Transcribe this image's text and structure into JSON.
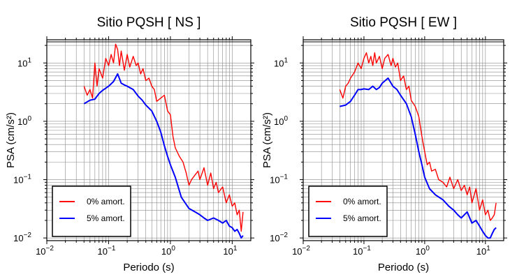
{
  "chart_data": [
    {
      "type": "line",
      "title": "Sitio PQSH [ NS ]",
      "xlabel": "Periodo (s)",
      "ylabel": "PSA (cm/s²)",
      "xscale": "log",
      "yscale": "log",
      "xlim": [
        0.01,
        20
      ],
      "ylim": [
        0.009,
        25
      ],
      "grid": true,
      "legend_position": "bottom-left",
      "xticks": [
        {
          "base": "10",
          "exp": "−2"
        },
        {
          "base": "10",
          "exp": "−1"
        },
        {
          "base": "10",
          "exp": "0"
        },
        {
          "base": "10",
          "exp": "1"
        }
      ],
      "yticks": [
        {
          "base": "10",
          "exp": "−2"
        },
        {
          "base": "10",
          "exp": "−1"
        },
        {
          "base": "10",
          "exp": "0"
        },
        {
          "base": "10",
          "exp": "1"
        }
      ],
      "series": [
        {
          "name": "0% amort.",
          "color": "#ff0000",
          "x": [
            0.04,
            0.045,
            0.05,
            0.055,
            0.06,
            0.065,
            0.07,
            0.08,
            0.09,
            0.1,
            0.11,
            0.12,
            0.13,
            0.14,
            0.15,
            0.16,
            0.18,
            0.2,
            0.22,
            0.25,
            0.28,
            0.3,
            0.33,
            0.36,
            0.4,
            0.45,
            0.5,
            0.55,
            0.6,
            0.7,
            0.8,
            0.9,
            1.0,
            1.1,
            1.2,
            1.4,
            1.6,
            1.8,
            2.0,
            2.2,
            2.5,
            2.8,
            3.0,
            3.5,
            4.0,
            4.5,
            5.0,
            5.5,
            6.0,
            7.0,
            8.0,
            9.0,
            10.0,
            11.0,
            12.0,
            13.0,
            14.0,
            15.0
          ],
          "y": [
            4.0,
            2.8,
            3.5,
            2.5,
            10.0,
            4.0,
            8.0,
            5.5,
            12.0,
            9.0,
            14.0,
            10.0,
            21.0,
            17.0,
            9.0,
            16.0,
            7.5,
            14.0,
            8.5,
            13.0,
            9.0,
            10.0,
            6.5,
            8.0,
            5.0,
            5.5,
            4.0,
            3.5,
            2.2,
            2.5,
            2.8,
            1.5,
            1.3,
            0.55,
            0.35,
            0.25,
            0.2,
            0.13,
            0.08,
            0.1,
            0.12,
            0.14,
            0.1,
            0.16,
            0.08,
            0.13,
            0.07,
            0.09,
            0.06,
            0.075,
            0.04,
            0.055,
            0.035,
            0.04,
            0.025,
            0.03,
            0.013,
            0.028
          ]
        },
        {
          "name": "5% amort.",
          "color": "#0000ff",
          "x": [
            0.04,
            0.05,
            0.06,
            0.07,
            0.08,
            0.09,
            0.1,
            0.12,
            0.14,
            0.16,
            0.18,
            0.2,
            0.25,
            0.3,
            0.35,
            0.4,
            0.5,
            0.6,
            0.7,
            0.8,
            0.9,
            1.0,
            1.2,
            1.5,
            2.0,
            2.5,
            3.0,
            3.5,
            4.0,
            5.0,
            6.0,
            7.0,
            8.0,
            9.0,
            10.0,
            11.0,
            12.0,
            13.0,
            14.0,
            15.0
          ],
          "y": [
            2.0,
            2.3,
            2.4,
            3.0,
            3.4,
            3.7,
            4.0,
            4.8,
            6.5,
            4.5,
            4.2,
            4.0,
            3.5,
            2.7,
            2.3,
            1.9,
            1.5,
            1.0,
            0.65,
            0.38,
            0.25,
            0.18,
            0.11,
            0.05,
            0.032,
            0.028,
            0.025,
            0.022,
            0.02,
            0.022,
            0.02,
            0.018,
            0.02,
            0.016,
            0.015,
            0.013,
            0.014,
            0.012,
            0.01,
            0.011
          ]
        }
      ],
      "legend": [
        {
          "label": "0% amort.",
          "color": "#ff0000"
        },
        {
          "label": "5% amort.",
          "color": "#0000ff"
        }
      ]
    },
    {
      "type": "line",
      "title": "Sitio PQSH [ EW ]",
      "xlabel": "Periodo (s)",
      "ylabel": "PSA (cm/s²)",
      "xscale": "log",
      "yscale": "log",
      "xlim": [
        0.01,
        20
      ],
      "ylim": [
        0.009,
        25
      ],
      "grid": true,
      "legend_position": "bottom-left",
      "xticks": [
        {
          "base": "10",
          "exp": "−2"
        },
        {
          "base": "10",
          "exp": "−1"
        },
        {
          "base": "10",
          "exp": "0"
        },
        {
          "base": "10",
          "exp": "1"
        }
      ],
      "yticks": [
        {
          "base": "10",
          "exp": "−2"
        },
        {
          "base": "10",
          "exp": "−1"
        },
        {
          "base": "10",
          "exp": "0"
        },
        {
          "base": "10",
          "exp": "1"
        }
      ],
      "series": [
        {
          "name": "0% amort.",
          "color": "#ff0000",
          "x": [
            0.04,
            0.045,
            0.05,
            0.055,
            0.06,
            0.07,
            0.08,
            0.09,
            0.1,
            0.11,
            0.12,
            0.13,
            0.14,
            0.15,
            0.16,
            0.18,
            0.2,
            0.22,
            0.25,
            0.28,
            0.3,
            0.33,
            0.36,
            0.4,
            0.45,
            0.5,
            0.55,
            0.6,
            0.7,
            0.8,
            0.9,
            1.0,
            1.1,
            1.2,
            1.3,
            1.5,
            1.7,
            2.0,
            2.3,
            2.6,
            3.0,
            3.5,
            4.0,
            4.5,
            5.0,
            5.5,
            6.0,
            7.0,
            8.0,
            9.0,
            10.0,
            11.0,
            12.0,
            13.0,
            14.0,
            15.0
          ],
          "y": [
            3.5,
            2.5,
            4.0,
            4.5,
            5.5,
            7.0,
            10.0,
            8.0,
            12.0,
            15.0,
            10.0,
            13.0,
            9.0,
            15.0,
            10.0,
            13.0,
            8.0,
            12.0,
            14.0,
            9.0,
            12.0,
            8.5,
            10.0,
            5.0,
            6.0,
            3.5,
            4.0,
            2.3,
            1.8,
            1.2,
            0.55,
            0.3,
            0.18,
            0.2,
            0.14,
            0.15,
            0.1,
            0.09,
            0.075,
            0.11,
            0.07,
            0.1,
            0.065,
            0.08,
            0.055,
            0.075,
            0.04,
            0.07,
            0.03,
            0.045,
            0.025,
            0.03,
            0.02,
            0.022,
            0.025,
            0.04
          ]
        },
        {
          "name": "5% amort.",
          "color": "#0000ff",
          "x": [
            0.04,
            0.05,
            0.06,
            0.07,
            0.08,
            0.09,
            0.1,
            0.12,
            0.14,
            0.16,
            0.18,
            0.2,
            0.25,
            0.3,
            0.35,
            0.4,
            0.5,
            0.6,
            0.7,
            0.8,
            0.9,
            1.0,
            1.2,
            1.5,
            2.0,
            2.5,
            3.0,
            3.5,
            4.0,
            5.0,
            6.0,
            7.0,
            8.0,
            9.0,
            10.0,
            11.0,
            12.0,
            13.0,
            14.0,
            15.0
          ],
          "y": [
            1.8,
            1.9,
            2.2,
            2.8,
            3.5,
            3.5,
            3.6,
            3.5,
            4.0,
            3.5,
            3.8,
            4.5,
            5.5,
            4.0,
            3.5,
            2.8,
            2.0,
            1.2,
            0.6,
            0.3,
            0.18,
            0.11,
            0.07,
            0.055,
            0.045,
            0.035,
            0.03,
            0.025,
            0.022,
            0.028,
            0.018,
            0.02,
            0.016,
            0.013,
            0.011,
            0.01,
            0.01,
            0.012,
            0.014,
            0.015
          ]
        }
      ],
      "legend": [
        {
          "label": "0% amort.",
          "color": "#ff0000"
        },
        {
          "label": "5% amort.",
          "color": "#0000ff"
        }
      ]
    }
  ]
}
